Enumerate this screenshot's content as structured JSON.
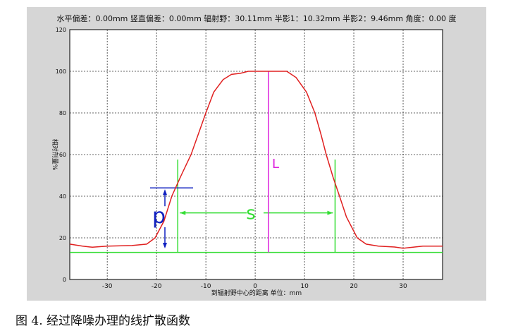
{
  "chart_data": {
    "type": "line",
    "header": "水平偏差：0.00mm   竖直偏差：0.00mm   辐射野：30.11mm   半影1：10.32mm   半影2：9.46mm   角度：0.00 度",
    "xlabel": "到辐射野中心的距离    单位：mm",
    "ylabel": "相对剂量%",
    "xlim": [
      -37.6,
      38
    ],
    "ylim": [
      0,
      120
    ],
    "xticks": [
      -30,
      -20,
      -10,
      0,
      10,
      20,
      30
    ],
    "yticks": [
      0,
      20,
      40,
      60,
      80,
      100,
      120
    ],
    "grid": true,
    "series": [
      {
        "color": "#e02020",
        "x": [
          -37.6,
          -35,
          -33,
          -30,
          -25,
          -22,
          -20.3,
          -18.5,
          -16.9,
          -15,
          -13,
          -10,
          -8.4,
          -6.5,
          -4.8,
          -3,
          -1.4,
          2,
          6.4,
          8.3,
          10.4,
          12.1,
          13.3,
          14.4,
          15.8,
          17.1,
          18.5,
          20.7,
          22.5,
          25,
          28.3,
          30,
          34,
          38
        ],
        "y": [
          17,
          16,
          15.5,
          16,
          16.3,
          17,
          20,
          28,
          40,
          50,
          60,
          80,
          90,
          96,
          98.5,
          99,
          100,
          100,
          100,
          97,
          90,
          80,
          70,
          60,
          49,
          40,
          30,
          20,
          17,
          16,
          15.6,
          15,
          16,
          16
        ]
      }
    ],
    "annotations": {
      "p_label": "p",
      "s_label": "s",
      "L_label": "L",
      "baseline_y": 13,
      "green_left_x": -15.7,
      "green_right_x": 16.2,
      "green_top_y": 57.6,
      "s_arrow_y": 32,
      "magenta_x": 2.7,
      "blue_line_y": 44,
      "colors": {
        "green": "#33dd33",
        "magenta": "#dd22dd",
        "blue": "#1020c0",
        "curve": "#e02020"
      }
    }
  },
  "caption": "图 4. 经过降噪办理的线扩散函数"
}
